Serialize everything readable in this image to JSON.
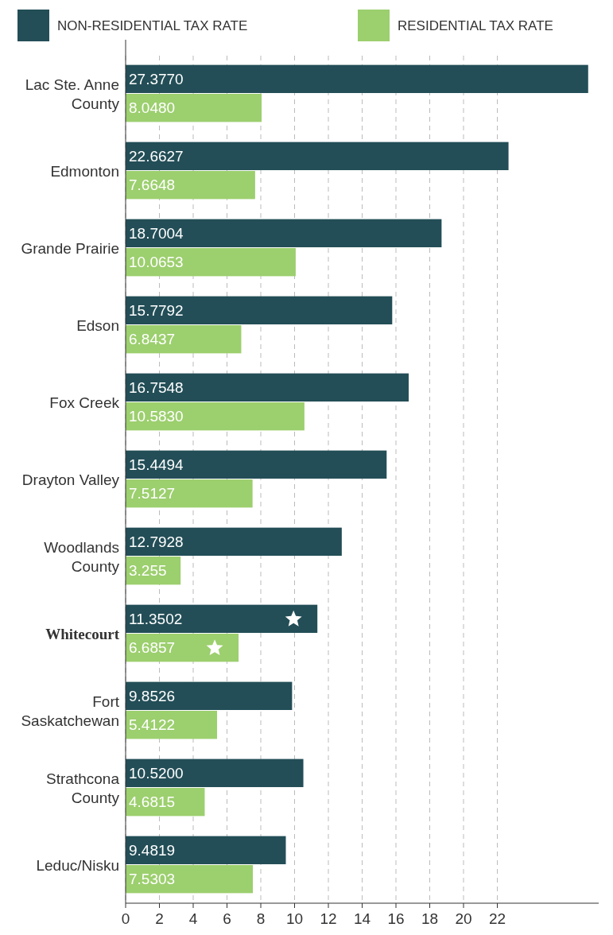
{
  "chart_data": {
    "type": "bar",
    "orientation": "horizontal",
    "categories": [
      "Lac Ste. Anne County",
      "Edmonton",
      "Grande Prairie",
      "Edson",
      "Fox Creek",
      "Drayton Valley",
      "Woodlands County",
      "Whitecourt",
      "Fort Saskatchewan",
      "Strathcona County",
      "Leduc/Nisku"
    ],
    "series": [
      {
        "name": "NON-RESIDENTIAL TAX RATE",
        "color": "#234e57",
        "values": [
          27.377,
          22.6627,
          18.7004,
          15.7792,
          16.7548,
          15.4494,
          12.7928,
          11.3502,
          9.8526,
          10.52,
          9.4819
        ],
        "value_labels": [
          "27.3770",
          "22.6627",
          "18.7004",
          "15.7792",
          "16.7548",
          "15.4494",
          "12.7928",
          "11.3502",
          "9.8526",
          "10.5200",
          "9.4819"
        ]
      },
      {
        "name": "RESIDENTIAL TAX RATE",
        "color": "#9ccf6e",
        "values": [
          8.048,
          7.6648,
          10.0653,
          6.8437,
          10.583,
          7.5127,
          3.255,
          6.6857,
          5.4122,
          4.6815,
          7.5303
        ],
        "value_labels": [
          "8.0480",
          "7.6648",
          "10.0653",
          "6.8437",
          "10.5830",
          "7.5127",
          "3.255",
          "6.6857",
          "5.4122",
          "4.6815",
          "7.5303"
        ]
      }
    ],
    "xlim": [
      0,
      28
    ],
    "xticks": [
      0,
      2,
      4,
      6,
      8,
      10,
      12,
      14,
      16,
      18,
      20,
      22
    ],
    "grid": "x",
    "legend": "top"
  }
}
